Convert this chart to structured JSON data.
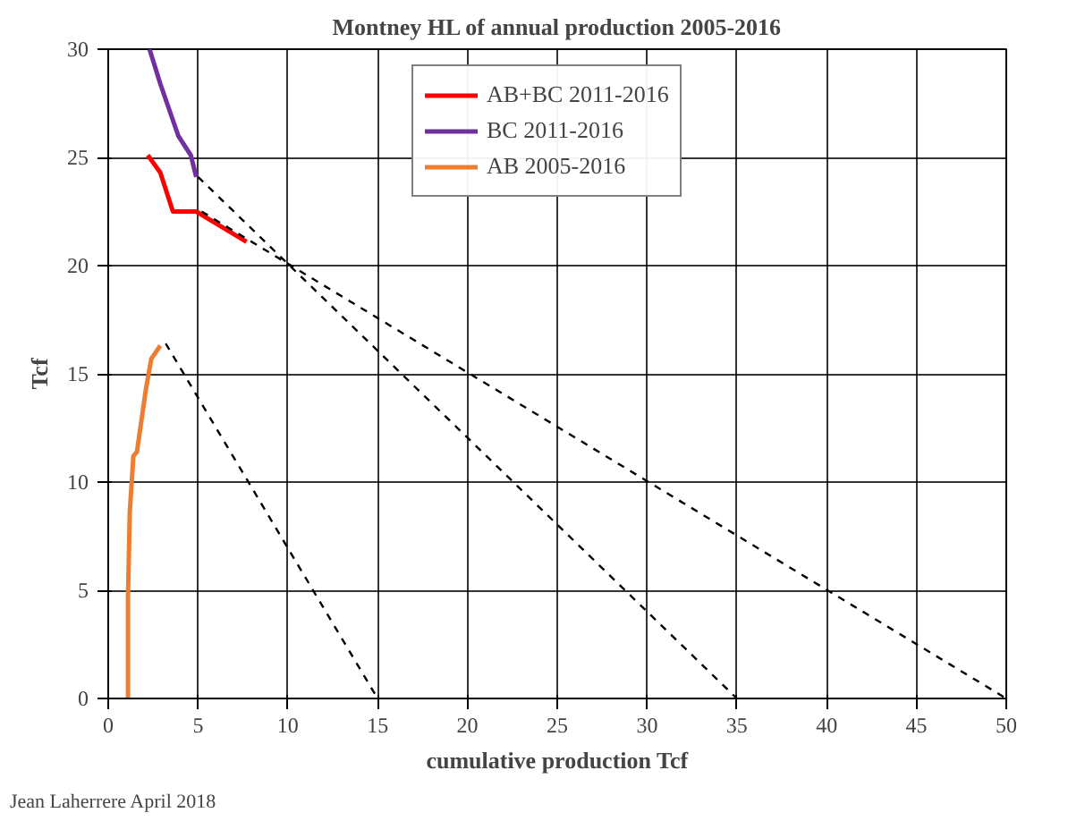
{
  "chart_data": {
    "type": "line",
    "title": "Montney HL of annual production 2005-2016",
    "xlabel": "cumulative production Tcf",
    "ylabel": "Tcf",
    "xlim": [
      0,
      50
    ],
    "ylim": [
      0,
      30
    ],
    "xticks": [
      0,
      5,
      10,
      15,
      20,
      25,
      30,
      35,
      40,
      45,
      50
    ],
    "yticks": [
      0,
      5,
      10,
      15,
      20,
      25,
      30
    ],
    "grid": true,
    "legend": "top",
    "marker": "none",
    "annotations": [
      "Jean Laherrere April 2018"
    ],
    "series": [
      {
        "name": "AB+BC 2011-2016",
        "color": "#ff0000",
        "x": [
          2.2,
          2.9,
          3.6,
          4.9,
          7.7
        ],
        "values": [
          25.1,
          24.3,
          22.5,
          22.5,
          21.1
        ]
      },
      {
        "name": "BC 2011-2016",
        "color": "#7030a0",
        "x": [
          2.3,
          2.9,
          3.9,
          4.6,
          4.9
        ],
        "values": [
          30,
          28.4,
          26.0,
          25.1,
          24.1
        ]
      },
      {
        "name": "AB 2005-2016",
        "color": "#ed7d31",
        "x": [
          1.1,
          1.1,
          1.2,
          1.4,
          1.6,
          2.1,
          2.4,
          2.9
        ],
        "values": [
          0,
          4.7,
          8.6,
          11.2,
          11.4,
          14.3,
          15.7,
          16.3
        ]
      },
      {
        "color": "#000000",
        "line_style": "dashed",
        "x": [
          3.2,
          15
        ],
        "values": [
          16.4,
          0
        ]
      },
      {
        "color": "#000000",
        "line_style": "dashed",
        "x": [
          5,
          35
        ],
        "values": [
          24.1,
          0
        ]
      },
      {
        "color": "#000000",
        "line_style": "dashed",
        "x": [
          5.2,
          50
        ],
        "values": [
          22.5,
          0
        ]
      }
    ]
  }
}
